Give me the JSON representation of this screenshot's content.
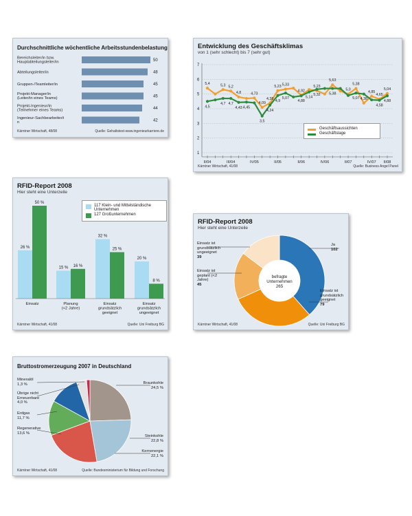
{
  "panel1": {
    "title": "Durchschnittliche wöchentliche Arbeitsstundenbelastung",
    "source_left": "Kärntner Wirtschaft, 48/08",
    "source_right": "Quelle: Gehaltstest-www.ingenieurkarriere.de",
    "chart_data": {
      "type": "bar",
      "categories": [
        "Bereichsleiter/in bzw. Hauptabteilungsleiter/in",
        "Abteilungsleiter/in",
        "Gruppen-/Teamleiter/in",
        "Projekt-Manager/in (Leiter/in eines Teams)",
        "Projekt-Ingenieur/in (Teilnehmer eines Teams)",
        "Ingenieur-Sachbearbeiter/in"
      ],
      "values": [
        50,
        48,
        45,
        45,
        44,
        42
      ],
      "value_labels": [
        "50",
        "48",
        "45",
        "45",
        "44",
        "42"
      ],
      "color": "#6f8fb0"
    }
  },
  "panel2": {
    "title": "Entwicklung des Geschäftsklimas",
    "subtitle": "von 1 (sehr schlecht) bis 7 (sehr gut)",
    "source_left": "Kärntner Wirtschaft, 41/08",
    "source_right": "Quelle: Business Angel Panel",
    "chart_data": {
      "type": "line",
      "x": [
        "II/04",
        "",
        "",
        "III/04",
        "",
        "",
        "IV/05",
        "",
        "",
        "II/05",
        "",
        "",
        "II/06",
        "",
        "",
        "IV/06",
        "",
        "",
        "II/07",
        "",
        "",
        "IV/07",
        "",
        "II/08"
      ],
      "xticks": [
        "II/04",
        "III/04",
        "IV/05",
        "II/05",
        "II/06",
        "IV/06",
        "II/07",
        "IV/07",
        "II/08"
      ],
      "yticks": [
        "1",
        "2",
        "3",
        "4",
        "5",
        "6",
        "7"
      ],
      "ylim": [
        1,
        7
      ],
      "series": [
        {
          "name": "Geschäftsaussichten",
          "color": "#f0a030",
          "values": [
            5.4,
            5.0,
            5.3,
            5.2,
            4.8,
            4.7,
            4.73,
            4.09,
            4.38,
            5.23,
            5.33,
            5.4,
            4.92,
            5.3,
            5.23,
            5.0,
            5.63,
            5.2,
            5.0,
            5.38,
            4.38,
            4.85,
            4.65,
            5.04
          ],
          "labels": [
            "5,4",
            "",
            "5,3",
            "5,2",
            "4,8",
            "",
            "4,73",
            "4,09",
            "4,38",
            "5,23",
            "5,33",
            "",
            "4,92",
            "",
            "5,23",
            "",
            "5,63",
            "",
            "5,0",
            "5,38",
            "4,38",
            "4,85",
            "4,65",
            "5,04"
          ]
        },
        {
          "name": "Geschäftslage",
          "color": "#2e8b3e",
          "values": [
            4.5,
            4.6,
            4.7,
            4.7,
            4.43,
            4.45,
            4.4,
            3.5,
            4.24,
            4.9,
            5.07,
            4.8,
            4.88,
            5.14,
            5.32,
            5.38,
            5.38,
            5.38,
            4.9,
            5.07,
            5.0,
            4.6,
            4.58,
            4.88
          ],
          "labels": [
            "4,5",
            "",
            "4,7",
            "4,7",
            "4,43",
            "4,45",
            "",
            "3,5",
            "4,24",
            "4,9",
            "5,07",
            "",
            "4,88",
            "5,14",
            "5,32",
            "",
            "5,38",
            "",
            "",
            "5,07",
            "",
            "",
            "4,58",
            "4,88"
          ]
        }
      ]
    }
  },
  "panel3": {
    "title": "RFID-Report 2008",
    "subtitle": "Hier steht eine Unterzeile",
    "source_left": "Kärntner Wirtschaft, 41/08",
    "source_right": "Quelle: Uni Freiburg BG",
    "chart_data": {
      "type": "bar",
      "categories": [
        "Einsatz",
        "Planung (<2 Jahre)",
        "Einsatz grundsätzlich geeignet",
        "Einsatz grundsätzlich ungeeignet"
      ],
      "series": [
        {
          "name": "117 Klein- und Mittelständische Unternehmen",
          "color": "#a9dcf2",
          "values": [
            26,
            15,
            32,
            20
          ],
          "labels": [
            "26 %",
            "15 %",
            "32 %",
            "20 %"
          ]
        },
        {
          "name": "127 Großunternehmen",
          "color": "#3e9a4e",
          "values": [
            50,
            16,
            25,
            8
          ],
          "labels": [
            "50 %",
            "16 %",
            "25 %",
            "8 %"
          ]
        }
      ],
      "ylim": [
        0,
        50
      ]
    }
  },
  "panel4": {
    "title": "RFID-Report 2008",
    "subtitle": "Hier steht eine Unterzeile",
    "source_left": "Kärntner Wirtschaft, 41/08",
    "source_right": "Quelle: Uni Freiburg BG",
    "center_line1": "befragte",
    "center_line2": "Unternehmen",
    "center_value": "265",
    "chart_data": {
      "type": "pie",
      "categories": [
        "Ja",
        "Einsatz ist grundsätzlich geeignet",
        "Einsatz ist geplant (<2 Jahre)",
        "Einsatz ist grundsätzlich ungeeignet"
      ],
      "values": [
        102,
        79,
        45,
        39
      ],
      "colors": [
        "#2b76b6",
        "#f0900a",
        "#f3b05a",
        "#fae3c6"
      ]
    },
    "label_ja": "Ja",
    "value_ja": "102",
    "label_geeignet": "Einsatz ist grundsätzlich geeignet",
    "value_geeignet": "79",
    "label_geplant": "Einsatz ist geplant (<2 Jahre)",
    "value_geplant": "45",
    "label_ungeeignet": "Einsatz ist grundsätzlich ungeeignet",
    "value_ungeeignet": "39"
  },
  "panel5": {
    "title": "Bruttostromerzeugung 2007 in Deutschland",
    "source_left": "Kärntner Wirtschaft, 41/08",
    "source_right": "Quelle: Bundesministerium für Bildung und Forschung",
    "chart_data": {
      "type": "pie",
      "categories": [
        "Braunkohle",
        "Steinkohle",
        "Kernenergie",
        "Regenerative",
        "Erdgas",
        "Übrige nicht Erneuerbare",
        "Mineralöl"
      ],
      "values": [
        24.5,
        22.8,
        22.1,
        13.6,
        11.7,
        4.0,
        1.3
      ],
      "value_labels": [
        "24,5 %",
        "22,8 %",
        "22,1 %",
        "13,6 %",
        "11,7 %",
        "4,0 %",
        "1,3 %"
      ],
      "colors": [
        "#a2958c",
        "#a4c4d8",
        "#d9574a",
        "#63ad5a",
        "#2366a8",
        "#e3e3e3",
        "#c8294a"
      ]
    },
    "label_braunkohle": "Braunkohle",
    "label_steinkohle": "Steinkohle",
    "label_kernenergie": "Kernenergie",
    "label_regenerative": "Regenerative",
    "label_erdgas": "Erdgas",
    "label_uebrige": "Übrige nicht Erneuerbare",
    "label_mineraloel": "Mineralöl"
  }
}
